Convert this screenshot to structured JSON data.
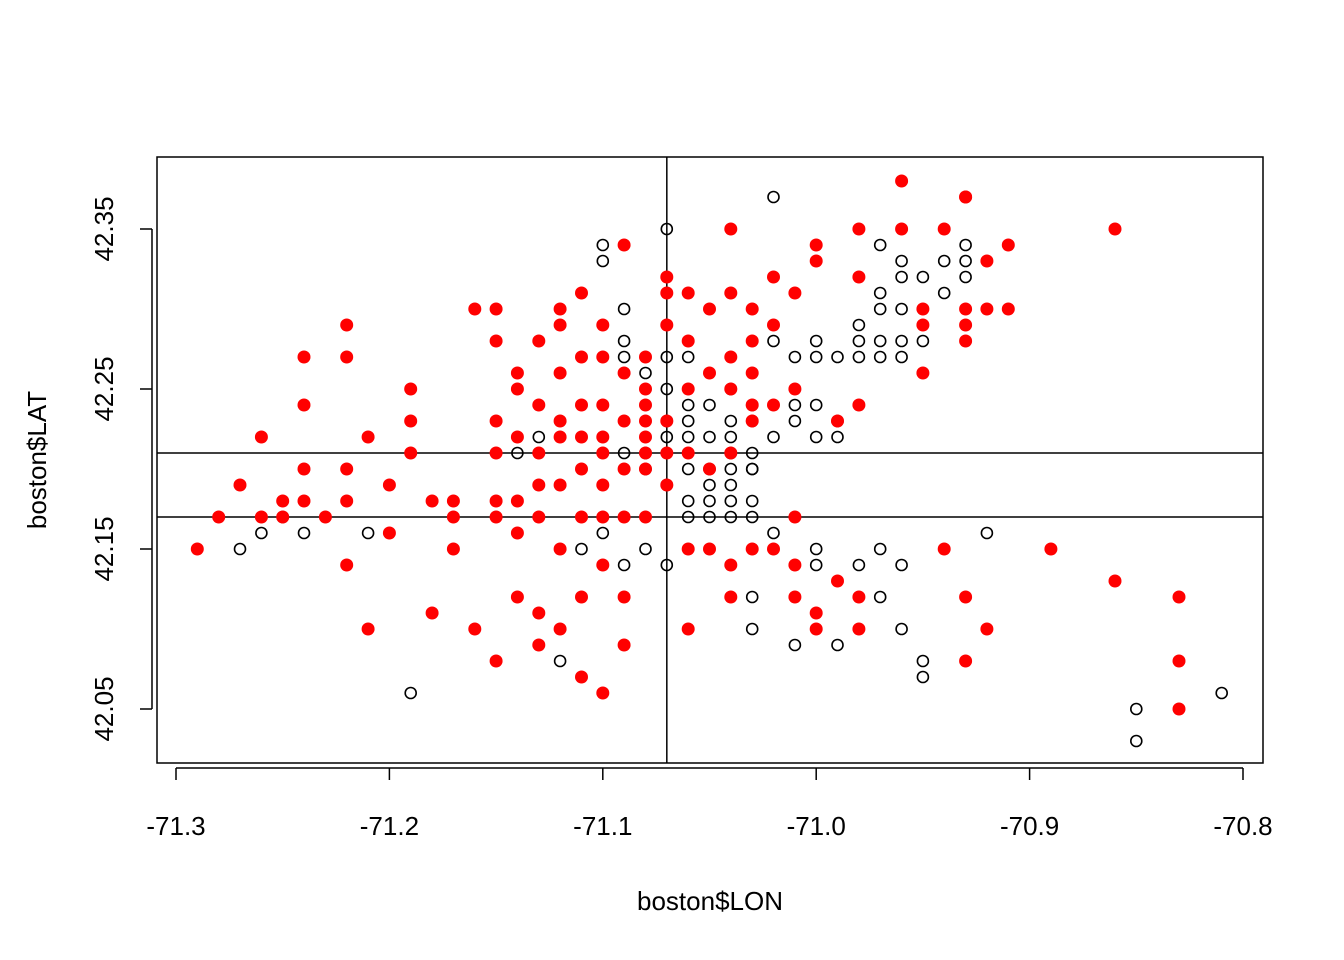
{
  "chart_data": {
    "type": "scatter",
    "title": "",
    "xlabel": "boston$LON",
    "ylabel": "boston$LAT",
    "xlim": [
      -71.3,
      -70.79
    ],
    "ylim": [
      42.02,
      42.38
    ],
    "x_ticks": [
      -71.3,
      -71.2,
      -71.1,
      -71.0,
      -70.9,
      -70.8
    ],
    "x_tick_labels": [
      "-71.3",
      "-71.2",
      "-71.1",
      "-71.0",
      "-70.9",
      "-70.8"
    ],
    "y_ticks": [
      42.05,
      42.15,
      42.25,
      42.35
    ],
    "y_tick_labels": [
      "42.05",
      "42.15",
      "42.25",
      "42.35"
    ],
    "grid": false,
    "legend": "none",
    "reference_lines": {
      "vertical_x": [
        -71.07
      ],
      "horizontal_y": [
        42.21,
        42.17
      ]
    },
    "series": [
      {
        "marker": "open-circle",
        "color": "#000000",
        "points": [
          [
            -71.27,
            42.15
          ],
          [
            -71.26,
            42.16
          ],
          [
            -71.25,
            42.17
          ],
          [
            -71.24,
            42.16
          ],
          [
            -71.21,
            42.16
          ],
          [
            -71.19,
            42.06
          ],
          [
            -71.12,
            42.08
          ],
          [
            -71.11,
            42.15
          ],
          [
            -71.1,
            42.16
          ],
          [
            -71.09,
            42.14
          ],
          [
            -71.08,
            42.15
          ],
          [
            -71.07,
            42.14
          ],
          [
            -71.06,
            42.17
          ],
          [
            -71.09,
            42.3
          ],
          [
            -71.09,
            42.28
          ],
          [
            -71.09,
            42.27
          ],
          [
            -71.07,
            42.35
          ],
          [
            -71.07,
            42.27
          ],
          [
            -71.06,
            42.27
          ],
          [
            -71.1,
            42.34
          ],
          [
            -71.1,
            42.33
          ],
          [
            -71.02,
            42.37
          ],
          [
            -71.03,
            42.12
          ],
          [
            -71.03,
            42.1
          ],
          [
            -71.01,
            42.09
          ],
          [
            -70.99,
            42.09
          ],
          [
            -71.0,
            42.15
          ],
          [
            -71.0,
            42.14
          ],
          [
            -70.98,
            42.14
          ],
          [
            -70.97,
            42.15
          ],
          [
            -70.96,
            42.14
          ],
          [
            -70.97,
            42.12
          ],
          [
            -70.96,
            42.1
          ],
          [
            -70.95,
            42.08
          ],
          [
            -70.95,
            42.07
          ],
          [
            -70.92,
            42.16
          ],
          [
            -70.85,
            42.05
          ],
          [
            -70.85,
            42.03
          ],
          [
            -70.81,
            42.06
          ],
          [
            -70.97,
            42.34
          ],
          [
            -70.96,
            42.33
          ],
          [
            -70.96,
            42.32
          ],
          [
            -70.95,
            42.32
          ],
          [
            -70.94,
            42.33
          ],
          [
            -70.93,
            42.34
          ],
          [
            -70.93,
            42.33
          ],
          [
            -70.93,
            42.32
          ],
          [
            -70.94,
            42.31
          ],
          [
            -70.96,
            42.3
          ],
          [
            -70.97,
            42.31
          ],
          [
            -70.97,
            42.3
          ],
          [
            -70.98,
            42.29
          ],
          [
            -70.97,
            42.28
          ],
          [
            -70.98,
            42.28
          ],
          [
            -70.98,
            42.27
          ],
          [
            -70.97,
            42.27
          ],
          [
            -70.96,
            42.28
          ],
          [
            -70.95,
            42.28
          ],
          [
            -70.96,
            42.27
          ],
          [
            -70.99,
            42.27
          ],
          [
            -71.0,
            42.27
          ],
          [
            -71.0,
            42.28
          ],
          [
            -71.01,
            42.27
          ],
          [
            -71.02,
            42.28
          ],
          [
            -71.01,
            42.24
          ],
          [
            -71.0,
            42.24
          ],
          [
            -70.99,
            42.23
          ],
          [
            -70.99,
            42.22
          ],
          [
            -71.0,
            42.22
          ],
          [
            -71.01,
            42.23
          ],
          [
            -71.03,
            42.24
          ],
          [
            -71.03,
            42.23
          ],
          [
            -71.02,
            42.22
          ],
          [
            -71.03,
            42.21
          ],
          [
            -71.04,
            42.25
          ],
          [
            -71.05,
            42.24
          ],
          [
            -71.06,
            42.24
          ],
          [
            -71.06,
            42.23
          ],
          [
            -71.07,
            42.23
          ],
          [
            -71.07,
            42.22
          ],
          [
            -71.06,
            42.22
          ],
          [
            -71.05,
            42.22
          ],
          [
            -71.04,
            42.23
          ],
          [
            -71.04,
            42.22
          ],
          [
            -71.04,
            42.21
          ],
          [
            -71.04,
            42.2
          ],
          [
            -71.05,
            42.2
          ],
          [
            -71.06,
            42.2
          ],
          [
            -71.05,
            42.19
          ],
          [
            -71.04,
            42.19
          ],
          [
            -71.03,
            42.2
          ],
          [
            -71.04,
            42.18
          ],
          [
            -71.05,
            42.18
          ],
          [
            -71.06,
            42.18
          ],
          [
            -71.05,
            42.17
          ],
          [
            -71.04,
            42.17
          ],
          [
            -71.03,
            42.18
          ],
          [
            -71.03,
            42.17
          ],
          [
            -71.02,
            42.16
          ],
          [
            -71.07,
            42.19
          ],
          [
            -71.08,
            42.21
          ],
          [
            -71.08,
            42.2
          ],
          [
            -71.09,
            42.21
          ],
          [
            -71.14,
            42.21
          ],
          [
            -71.13,
            42.22
          ],
          [
            -71.08,
            42.26
          ],
          [
            -71.07,
            42.25
          ],
          [
            -71.03,
            42.2
          ]
        ]
      },
      {
        "marker": "filled-circle",
        "color": "#ff0000",
        "points": [
          [
            -71.29,
            42.15
          ],
          [
            -71.28,
            42.17
          ],
          [
            -71.27,
            42.19
          ],
          [
            -71.26,
            42.17
          ],
          [
            -71.26,
            42.22
          ],
          [
            -71.25,
            42.18
          ],
          [
            -71.25,
            42.17
          ],
          [
            -71.24,
            42.18
          ],
          [
            -71.24,
            42.2
          ],
          [
            -71.24,
            42.24
          ],
          [
            -71.24,
            42.27
          ],
          [
            -71.23,
            42.17
          ],
          [
            -71.22,
            42.14
          ],
          [
            -71.22,
            42.18
          ],
          [
            -71.22,
            42.2
          ],
          [
            -71.22,
            42.27
          ],
          [
            -71.22,
            42.29
          ],
          [
            -71.21,
            42.22
          ],
          [
            -71.21,
            42.1
          ],
          [
            -71.2,
            42.19
          ],
          [
            -71.2,
            42.16
          ],
          [
            -71.19,
            42.21
          ],
          [
            -71.19,
            42.23
          ],
          [
            -71.19,
            42.25
          ],
          [
            -71.18,
            42.18
          ],
          [
            -71.18,
            42.11
          ],
          [
            -71.17,
            42.17
          ],
          [
            -71.17,
            42.15
          ],
          [
            -71.17,
            42.18
          ],
          [
            -71.16,
            42.3
          ],
          [
            -71.16,
            42.1
          ],
          [
            -71.15,
            42.3
          ],
          [
            -71.15,
            42.28
          ],
          [
            -71.15,
            42.23
          ],
          [
            -71.15,
            42.21
          ],
          [
            -71.15,
            42.18
          ],
          [
            -71.15,
            42.17
          ],
          [
            -71.15,
            42.08
          ],
          [
            -71.14,
            42.26
          ],
          [
            -71.14,
            42.25
          ],
          [
            -71.14,
            42.22
          ],
          [
            -71.14,
            42.18
          ],
          [
            -71.14,
            42.16
          ],
          [
            -71.14,
            42.12
          ],
          [
            -71.13,
            42.28
          ],
          [
            -71.13,
            42.24
          ],
          [
            -71.13,
            42.21
          ],
          [
            -71.13,
            42.19
          ],
          [
            -71.13,
            42.17
          ],
          [
            -71.13,
            42.11
          ],
          [
            -71.13,
            42.09
          ],
          [
            -71.12,
            42.3
          ],
          [
            -71.12,
            42.29
          ],
          [
            -71.12,
            42.26
          ],
          [
            -71.12,
            42.23
          ],
          [
            -71.12,
            42.22
          ],
          [
            -71.12,
            42.19
          ],
          [
            -71.12,
            42.15
          ],
          [
            -71.12,
            42.1
          ],
          [
            -71.11,
            42.31
          ],
          [
            -71.11,
            42.27
          ],
          [
            -71.11,
            42.24
          ],
          [
            -71.11,
            42.22
          ],
          [
            -71.11,
            42.2
          ],
          [
            -71.11,
            42.17
          ],
          [
            -71.11,
            42.12
          ],
          [
            -71.11,
            42.07
          ],
          [
            -71.1,
            42.29
          ],
          [
            -71.1,
            42.27
          ],
          [
            -71.1,
            42.24
          ],
          [
            -71.1,
            42.22
          ],
          [
            -71.1,
            42.21
          ],
          [
            -71.1,
            42.19
          ],
          [
            -71.1,
            42.17
          ],
          [
            -71.1,
            42.14
          ],
          [
            -71.1,
            42.06
          ],
          [
            -71.09,
            42.34
          ],
          [
            -71.09,
            42.26
          ],
          [
            -71.09,
            42.23
          ],
          [
            -71.09,
            42.2
          ],
          [
            -71.09,
            42.17
          ],
          [
            -71.09,
            42.12
          ],
          [
            -71.09,
            42.09
          ],
          [
            -71.08,
            42.27
          ],
          [
            -71.08,
            42.25
          ],
          [
            -71.08,
            42.24
          ],
          [
            -71.08,
            42.23
          ],
          [
            -71.08,
            42.22
          ],
          [
            -71.08,
            42.21
          ],
          [
            -71.08,
            42.2
          ],
          [
            -71.08,
            42.17
          ],
          [
            -71.07,
            42.31
          ],
          [
            -71.07,
            42.29
          ],
          [
            -71.07,
            42.23
          ],
          [
            -71.07,
            42.21
          ],
          [
            -71.07,
            42.19
          ],
          [
            -71.07,
            42.32
          ],
          [
            -71.06,
            42.31
          ],
          [
            -71.06,
            42.28
          ],
          [
            -71.06,
            42.25
          ],
          [
            -71.06,
            42.21
          ],
          [
            -71.06,
            42.15
          ],
          [
            -71.06,
            42.1
          ],
          [
            -71.05,
            42.3
          ],
          [
            -71.05,
            42.26
          ],
          [
            -71.05,
            42.2
          ],
          [
            -71.05,
            42.15
          ],
          [
            -71.04,
            42.35
          ],
          [
            -71.04,
            42.31
          ],
          [
            -71.04,
            42.27
          ],
          [
            -71.04,
            42.25
          ],
          [
            -71.04,
            42.21
          ],
          [
            -71.04,
            42.14
          ],
          [
            -71.04,
            42.12
          ],
          [
            -71.03,
            42.3
          ],
          [
            -71.03,
            42.28
          ],
          [
            -71.03,
            42.26
          ],
          [
            -71.03,
            42.24
          ],
          [
            -71.03,
            42.23
          ],
          [
            -71.03,
            42.15
          ],
          [
            -71.02,
            42.32
          ],
          [
            -71.02,
            42.29
          ],
          [
            -71.02,
            42.24
          ],
          [
            -71.02,
            42.15
          ],
          [
            -71.01,
            42.31
          ],
          [
            -71.01,
            42.25
          ],
          [
            -71.01,
            42.17
          ],
          [
            -71.01,
            42.14
          ],
          [
            -71.01,
            42.12
          ],
          [
            -71.0,
            42.34
          ],
          [
            -71.0,
            42.33
          ],
          [
            -71.0,
            42.11
          ],
          [
            -71.0,
            42.1
          ],
          [
            -70.99,
            42.13
          ],
          [
            -70.99,
            42.23
          ],
          [
            -70.98,
            42.24
          ],
          [
            -70.98,
            42.12
          ],
          [
            -70.98,
            42.1
          ],
          [
            -70.98,
            42.35
          ],
          [
            -70.98,
            42.32
          ],
          [
            -70.96,
            42.38
          ],
          [
            -70.96,
            42.35
          ],
          [
            -70.95,
            42.3
          ],
          [
            -70.95,
            42.29
          ],
          [
            -70.95,
            42.26
          ],
          [
            -70.94,
            42.35
          ],
          [
            -70.94,
            42.15
          ],
          [
            -70.93,
            42.37
          ],
          [
            -70.93,
            42.37
          ],
          [
            -70.93,
            42.3
          ],
          [
            -70.93,
            42.29
          ],
          [
            -70.93,
            42.28
          ],
          [
            -70.93,
            42.12
          ],
          [
            -70.93,
            42.08
          ],
          [
            -70.92,
            42.33
          ],
          [
            -70.92,
            42.3
          ],
          [
            -70.92,
            42.1
          ],
          [
            -70.91,
            42.3
          ],
          [
            -70.91,
            42.34
          ],
          [
            -70.89,
            42.15
          ],
          [
            -70.86,
            42.35
          ],
          [
            -70.86,
            42.13
          ],
          [
            -70.83,
            42.12
          ],
          [
            -70.83,
            42.08
          ],
          [
            -70.83,
            42.05
          ]
        ]
      }
    ]
  }
}
